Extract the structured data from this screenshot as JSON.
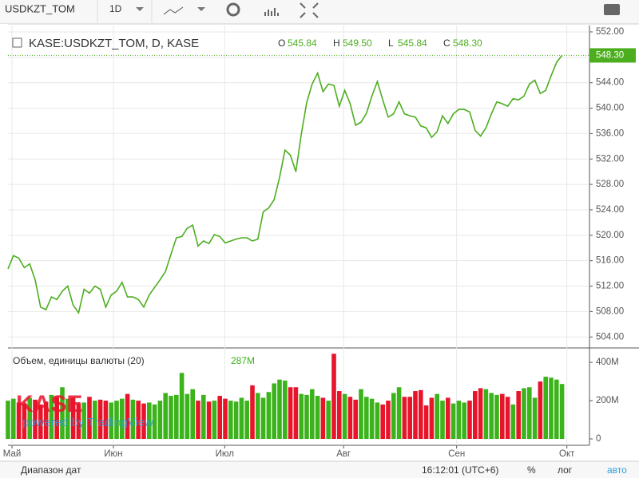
{
  "toolbar": {
    "symbol": "USDKZT_TOM",
    "interval": "1D"
  },
  "chart_data": [
    {
      "type": "line",
      "title": "KASE:USDKZT_TOM, D, KASE",
      "color": "#4cae1f",
      "ohlc": [
        {
          "key": "O",
          "value": "545.84"
        },
        {
          "key": "H",
          "value": "549.50"
        },
        {
          "key": "L",
          "value": "545.84"
        },
        {
          "key": "C",
          "value": "548.30"
        }
      ],
      "last_label": "548.30",
      "values": [
        514.7,
        516.8,
        516.4,
        514.9,
        515.5,
        513,
        508.7,
        508.3,
        510.3,
        509.9,
        511.2,
        512,
        509,
        507.8,
        511.5,
        510.9,
        512,
        511.5,
        508.7,
        510.6,
        511.2,
        512.6,
        510.3,
        510.3,
        509.9,
        508.7,
        510.6,
        511.8,
        513,
        514.3,
        517,
        519.6,
        519.8,
        521.1,
        521.6,
        518.3,
        519.1,
        518.7,
        520.1,
        519.8,
        518.8,
        519.1,
        519.4,
        519.6,
        519.6,
        519.1,
        519.4,
        523.7,
        524.3,
        525.6,
        529.1,
        533.4,
        532.6,
        530,
        535.9,
        540.9,
        543.8,
        545.5,
        542.6,
        543.8,
        543.6,
        540.3,
        542.8,
        540.7,
        537.3,
        537.8,
        539.2,
        541.9,
        544.2,
        541.3,
        538.6,
        539.1,
        541,
        539.1,
        538.8,
        538.6,
        537.2,
        536.9,
        535.4,
        536.3,
        538.8,
        537.6,
        539.1,
        539.8,
        539.8,
        539.4,
        536.5,
        535.6,
        536.9,
        539.1,
        541,
        540.7,
        540.3,
        541.5,
        541.3,
        541.9,
        543.8,
        544.4,
        542.3,
        542.8,
        545.1,
        547.2,
        548.3
      ],
      "ylim": [
        502.4,
        553.0
      ],
      "yticks": [
        {
          "value": 504,
          "label": "504.00"
        },
        {
          "value": 508,
          "label": "508.00"
        },
        {
          "value": 512,
          "label": "512.00"
        },
        {
          "value": 516,
          "label": "516.00"
        },
        {
          "value": 520,
          "label": "520.00"
        },
        {
          "value": 524,
          "label": "524.00"
        },
        {
          "value": 528,
          "label": "528.00"
        },
        {
          "value": 532,
          "label": "532.00"
        },
        {
          "value": 536,
          "label": "536.00"
        },
        {
          "value": 540,
          "label": "540.00"
        },
        {
          "value": 544,
          "label": "544.00"
        },
        {
          "value": 548,
          "label": "548.00"
        },
        {
          "value": 552,
          "label": "552.00"
        }
      ]
    },
    {
      "type": "bar",
      "title": "Объем, единицы валюты (20)",
      "last_label": "287M",
      "up_color": "#3bb31a",
      "down_color": "#e8142a",
      "values": [
        200,
        210,
        190,
        185,
        215,
        205,
        180,
        195,
        230,
        220,
        270,
        210,
        215,
        185,
        190,
        220,
        200,
        205,
        200,
        190,
        200,
        210,
        235,
        205,
        200,
        185,
        190,
        180,
        200,
        240,
        225,
        230,
        345,
        235,
        260,
        200,
        230,
        195,
        200,
        225,
        210,
        200,
        195,
        215,
        200,
        280,
        240,
        215,
        245,
        290,
        310,
        305,
        270,
        270,
        235,
        230,
        260,
        225,
        215,
        200,
        445,
        250,
        235,
        220,
        205,
        260,
        220,
        210,
        190,
        180,
        200,
        240,
        270,
        220,
        220,
        250,
        255,
        175,
        215,
        235,
        200,
        215,
        185,
        200,
        190,
        200,
        250,
        265,
        260,
        240,
        230,
        235,
        220,
        180,
        250,
        265,
        270,
        215,
        300,
        325,
        320,
        310,
        287
      ],
      "ylim": [
        0,
        467
      ],
      "yticks": [
        0,
        {
          "value": 200,
          "label": "200M"
        },
        {
          "value": 400,
          "label": "400M"
        }
      ],
      "xlim": [
        -1.47,
        107.06
      ],
      "xticks": [
        {
          "value": 0.74,
          "label": "Май"
        },
        {
          "value": 19.4,
          "label": "Июн"
        },
        {
          "value": 39.9,
          "label": "Июл"
        },
        {
          "value": 61.8,
          "label": "Авг"
        },
        {
          "value": 82.6,
          "label": "Сен"
        },
        {
          "value": 102.9,
          "label": "Окт"
        }
      ]
    }
  ],
  "watermark": {
    "logo": "KASE",
    "powered": "powered by TradingView"
  },
  "bottom_bar": {
    "range": "Диапазон дат",
    "time": "16:12:01 (UTC+6)",
    "percent": "%",
    "log": "лог",
    "auto": "авто"
  }
}
